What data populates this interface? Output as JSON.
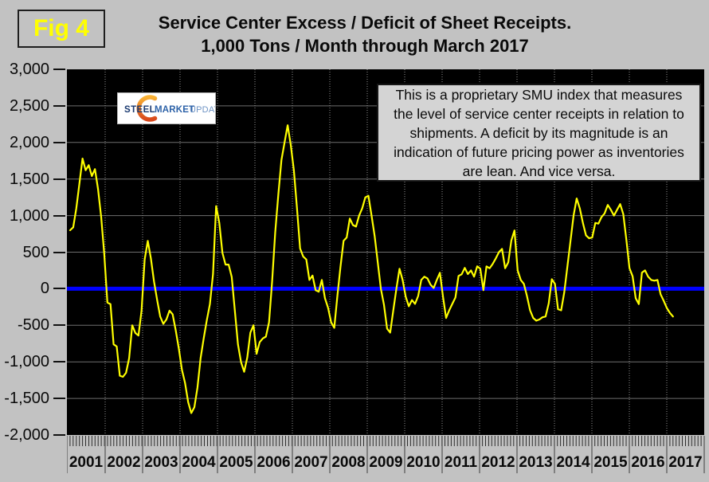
{
  "header": {
    "fig_label": "Fig 4",
    "title_line1": "Service Center Excess / Deficit of Sheet Receipts.",
    "title_line2": "1,000 Tons / Month through March 2017"
  },
  "logo": {
    "word1": "STEEL",
    "word2": "MARKET",
    "word3": "UPDATE"
  },
  "annotation": {
    "lines": [
      "This is a proprietary SMU index that measures",
      "the level of service center receipts in relation to",
      "shipments. A deficit by its magnitude is an",
      "indication of future pricing power as inventories",
      "are lean. And vice versa."
    ]
  },
  "colors": {
    "page_bg": "#c2c2c2",
    "plot_bg": "#000000",
    "line": "#ffff00",
    "zero_line": "#0000ff",
    "grid_h": "#6e6e6e",
    "grid_v": "#8f8f8f",
    "tick": "#2e2e2e",
    "separator": "#6b6b6b",
    "logo_steel": "#1b3a70",
    "logo_market": "#2d62a8",
    "logo_update": "#6e93c4",
    "logo_swoosh_top": "#f9b234",
    "logo_swoosh_bottom": "#d9481c"
  },
  "chart_data": {
    "type": "line",
    "title": "Service Center Excess / Deficit of Sheet Receipts. 1,000 Tons / Month through March 2017",
    "xlabel": "",
    "ylabel": "",
    "ylim": [
      -2000,
      3000
    ],
    "y_tick_step": 500,
    "y_tick_labels": [
      "3,000",
      "2,500",
      "2,000",
      "1,500",
      "1,000",
      "500",
      "0",
      "-500",
      "-1,000",
      "-1,500",
      "-2,000"
    ],
    "x_years": [
      "2001",
      "2002",
      "2003",
      "2004",
      "2005",
      "2006",
      "2007",
      "2008",
      "2009",
      "2010",
      "2011",
      "2012",
      "2013",
      "2014",
      "2015",
      "2016",
      "2017"
    ],
    "x_start": "2001-01",
    "x_end": "2017-03",
    "grid": {
      "horizontal": "solid every 500",
      "vertical": "dotted at each year"
    },
    "legend": "none",
    "zero_reference_line": 0,
    "series": [
      {
        "name": "SMU sheet receipts excess/deficit (1,000 tons/month)",
        "monthly_values": [
          800,
          840,
          1100,
          1440,
          1780,
          1620,
          1690,
          1540,
          1635,
          1360,
          980,
          470,
          -190,
          -210,
          -760,
          -790,
          -1190,
          -1205,
          -1150,
          -950,
          -500,
          -605,
          -640,
          -300,
          400,
          655,
          415,
          100,
          -150,
          -380,
          -480,
          -420,
          -300,
          -350,
          -570,
          -820,
          -1110,
          -1290,
          -1550,
          -1700,
          -1620,
          -1350,
          -950,
          -680,
          -430,
          -210,
          200,
          1130,
          900,
          490,
          330,
          330,
          160,
          -300,
          -760,
          -1005,
          -1135,
          -940,
          -600,
          -500,
          -890,
          -730,
          -680,
          -655,
          -460,
          100,
          775,
          1290,
          1760,
          2000,
          2235,
          1965,
          1620,
          1100,
          550,
          440,
          400,
          120,
          180,
          -20,
          -40,
          120,
          -130,
          -260,
          -460,
          -535,
          -100,
          300,
          655,
          700,
          960,
          870,
          850,
          1000,
          1100,
          1250,
          1270,
          1000,
          720,
          360,
          0,
          -220,
          -545,
          -600,
          -295,
          0,
          273,
          120,
          -110,
          -240,
          -155,
          -207,
          -100,
          120,
          165,
          140,
          55,
          10,
          120,
          218,
          -110,
          -400,
          -295,
          -207,
          -120,
          175,
          197,
          284,
          200,
          251,
          164,
          306,
          273,
          -20,
          306,
          280,
          340,
          415,
          500,
          545,
          280,
          360,
          660,
          797,
          250,
          120,
          66,
          -100,
          -295,
          -400,
          -437,
          -420,
          -390,
          -380,
          -200,
          130,
          66,
          -280,
          -295,
          -50,
          300,
          650,
          1000,
          1234,
          1100,
          900,
          730,
          690,
          700,
          900,
          890,
          980,
          1030,
          1146,
          1080,
          1000,
          1080,
          1157,
          1020,
          666,
          280,
          170,
          -130,
          -210,
          220,
          250,
          165,
          120,
          110,
          120,
          -75,
          -165,
          -262,
          -330,
          -380
        ]
      }
    ]
  }
}
